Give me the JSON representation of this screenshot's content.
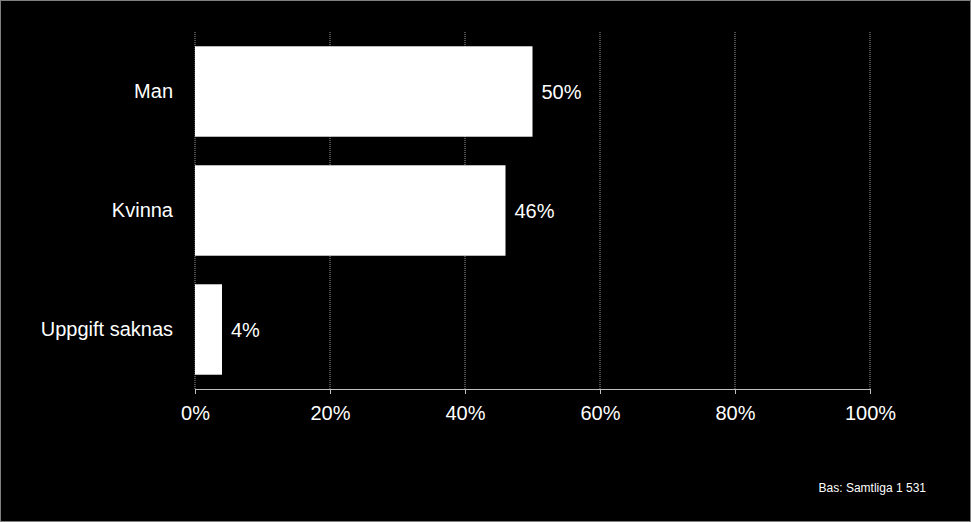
{
  "chart_data": {
    "type": "bar",
    "orientation": "horizontal",
    "categories": [
      "Man",
      "Kvinna",
      "Uppgift saknas"
    ],
    "values": [
      50,
      46,
      4
    ],
    "value_labels": [
      "50%",
      "46%",
      "4%"
    ],
    "color": "#ffffff",
    "xlim": [
      0,
      100
    ],
    "xticks": [
      {
        "value": 0,
        "label": "0%"
      },
      {
        "value": 20,
        "label": "20%"
      },
      {
        "value": 40,
        "label": "40%"
      },
      {
        "value": 60,
        "label": "60%"
      },
      {
        "value": 80,
        "label": "80%"
      },
      {
        "value": 100,
        "label": "100%"
      }
    ],
    "grid": true,
    "data_labels": true,
    "annotations": [
      "Bas: Samtliga 1 531"
    ]
  }
}
